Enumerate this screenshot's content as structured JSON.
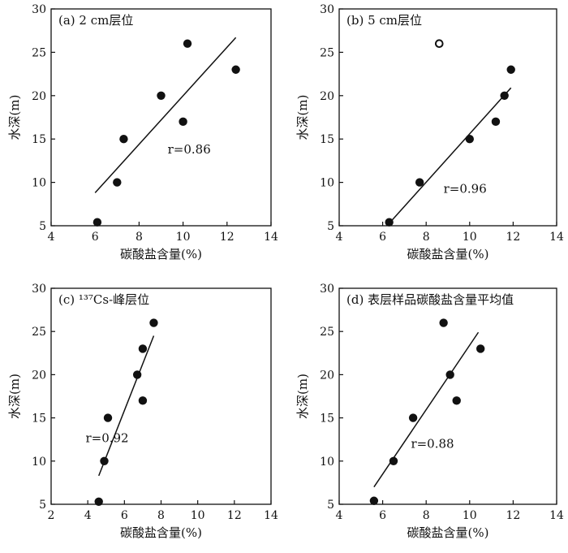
{
  "chart_data": [
    {
      "type": "scatter",
      "title": "(a) 2 cm层位",
      "xlabel": "碳酸盐含量(%)",
      "ylabel": "水深(m)",
      "xlim": [
        4,
        14
      ],
      "ylim": [
        5,
        30
      ],
      "xticks": [
        "4",
        "6",
        "8",
        "10",
        "12",
        "14"
      ],
      "yticks": [
        "5",
        "10",
        "15",
        "20",
        "25",
        "30"
      ],
      "points": [
        {
          "x": 6.1,
          "y": 5.4
        },
        {
          "x": 7.0,
          "y": 10.0
        },
        {
          "x": 7.3,
          "y": 15.0
        },
        {
          "x": 9.0,
          "y": 20.0
        },
        {
          "x": 10.0,
          "y": 17.0
        },
        {
          "x": 10.2,
          "y": 26.0
        },
        {
          "x": 12.4,
          "y": 23.0
        }
      ],
      "open_points": [],
      "fit_line": [
        {
          "x": 6.0,
          "y": 8.8
        },
        {
          "x": 12.4,
          "y": 26.7
        }
      ],
      "r_label": "r=0.86",
      "grid": false
    },
    {
      "type": "scatter",
      "title": "(b) 5 cm层位",
      "xlabel": "碳酸盐含量(%)",
      "ylabel": "水深(m)",
      "xlim": [
        4,
        14
      ],
      "ylim": [
        5,
        30
      ],
      "xticks": [
        "4",
        "6",
        "8",
        "10",
        "12",
        "14"
      ],
      "yticks": [
        "5",
        "10",
        "15",
        "20",
        "25",
        "30"
      ],
      "points": [
        {
          "x": 6.3,
          "y": 5.4
        },
        {
          "x": 7.7,
          "y": 10.0
        },
        {
          "x": 10.0,
          "y": 15.0
        },
        {
          "x": 11.2,
          "y": 17.0
        },
        {
          "x": 11.6,
          "y": 20.0
        },
        {
          "x": 11.9,
          "y": 23.0
        }
      ],
      "open_points": [
        {
          "x": 8.6,
          "y": 26.0
        }
      ],
      "fit_line": [
        {
          "x": 6.2,
          "y": 5.0
        },
        {
          "x": 11.9,
          "y": 20.9
        }
      ],
      "r_label": "r=0.96",
      "grid": false
    },
    {
      "type": "scatter",
      "title": "(c) ¹³⁷Cs-峰层位",
      "xlabel": "碳酸盐含量(%)",
      "ylabel": "水深(m)",
      "xlim": [
        2,
        14
      ],
      "ylim": [
        5,
        30
      ],
      "xticks": [
        "2",
        "4",
        "6",
        "8",
        "10",
        "12",
        "14"
      ],
      "yticks": [
        "5",
        "10",
        "15",
        "20",
        "25",
        "30"
      ],
      "points": [
        {
          "x": 4.6,
          "y": 5.3
        },
        {
          "x": 4.9,
          "y": 10.0
        },
        {
          "x": 5.1,
          "y": 15.0
        },
        {
          "x": 6.7,
          "y": 20.0
        },
        {
          "x": 7.0,
          "y": 17.0
        },
        {
          "x": 7.0,
          "y": 23.0
        },
        {
          "x": 7.6,
          "y": 26.0
        }
      ],
      "open_points": [],
      "fit_line": [
        {
          "x": 4.6,
          "y": 8.3
        },
        {
          "x": 7.6,
          "y": 24.5
        }
      ],
      "r_label": "r=0.92",
      "grid": false
    },
    {
      "type": "scatter",
      "title": "(d) 表层样品碳酸盐含量平均值",
      "xlabel": "碳酸盐含量(%)",
      "ylabel": "水深(m)",
      "xlim": [
        4,
        14
      ],
      "ylim": [
        5,
        30
      ],
      "xticks": [
        "4",
        "6",
        "8",
        "10",
        "12",
        "14"
      ],
      "yticks": [
        "5",
        "10",
        "15",
        "20",
        "25",
        "30"
      ],
      "points": [
        {
          "x": 5.6,
          "y": 5.4
        },
        {
          "x": 6.5,
          "y": 10.0
        },
        {
          "x": 7.4,
          "y": 15.0
        },
        {
          "x": 8.8,
          "y": 26.0
        },
        {
          "x": 9.1,
          "y": 20.0
        },
        {
          "x": 9.4,
          "y": 17.0
        },
        {
          "x": 10.5,
          "y": 23.0
        }
      ],
      "open_points": [],
      "fit_line": [
        {
          "x": 5.6,
          "y": 7.0
        },
        {
          "x": 10.4,
          "y": 24.9
        }
      ],
      "r_label": "r=0.88",
      "grid": false
    }
  ]
}
